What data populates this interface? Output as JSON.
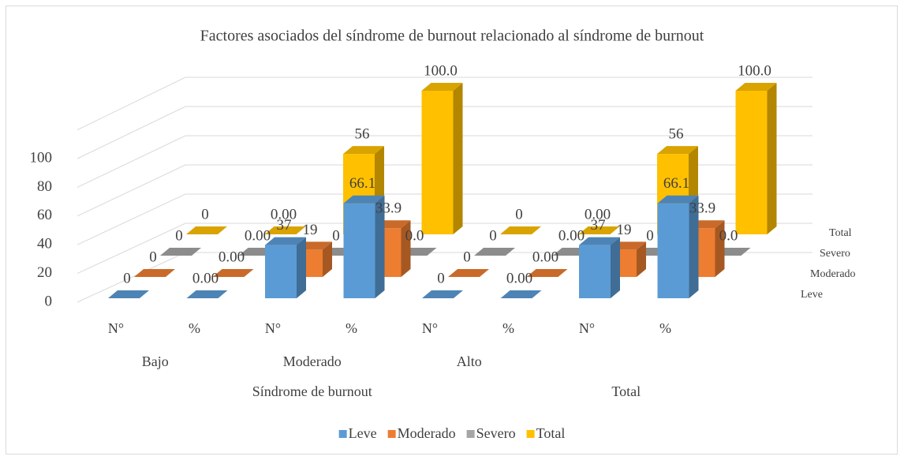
{
  "chart_data": {
    "type": "bar3d",
    "title": "Factores asociados del síndrome de burnout relacionado al síndrome de burnout",
    "groups": [
      {
        "name": "Síndrome de burnout",
        "groups": [
          {
            "name": "Bajo",
            "categories": [
              "N°",
              "%"
            ]
          },
          {
            "name": "Moderado",
            "categories": [
              "N°",
              "%"
            ]
          },
          {
            "name": "Alto",
            "categories": [
              "N°",
              "%"
            ]
          }
        ]
      },
      {
        "name": "Total",
        "categories": [
          "N°",
          "%"
        ]
      }
    ],
    "series": [
      {
        "name": "Leve",
        "color": "#5b9bd5",
        "values": [
          0,
          0,
          37,
          66.1,
          0,
          0,
          37,
          66.1
        ],
        "value_labels": [
          "0",
          "0.00",
          "37",
          "66.1",
          "0",
          "0.00",
          "37",
          "66.1"
        ]
      },
      {
        "name": "Moderado",
        "color": "#ed7d31",
        "values": [
          0,
          0,
          19,
          33.9,
          0,
          0,
          19,
          33.9
        ],
        "value_labels": [
          "0",
          "0.00",
          "19",
          "33.9",
          "0",
          "0.00",
          "19",
          "33.9"
        ]
      },
      {
        "name": "Severo",
        "color": "#a5a5a5",
        "values": [
          0,
          0,
          0,
          0,
          0,
          0,
          0,
          0
        ],
        "value_labels": [
          "0",
          "0.00",
          "0",
          "0.0",
          "0",
          "0.00",
          "0",
          "0.0"
        ]
      },
      {
        "name": "Total",
        "color": "#ffc000",
        "values": [
          0,
          0,
          56,
          100,
          0,
          0,
          56,
          100
        ],
        "value_labels": [
          "0",
          "0.00",
          "56",
          "100.0",
          "0",
          "0.00",
          "56",
          "100.0"
        ]
      }
    ],
    "ylim": [
      0,
      120
    ],
    "yticks": [
      0,
      20,
      40,
      60,
      80,
      100
    ],
    "grid": true,
    "legend": "bottom"
  }
}
